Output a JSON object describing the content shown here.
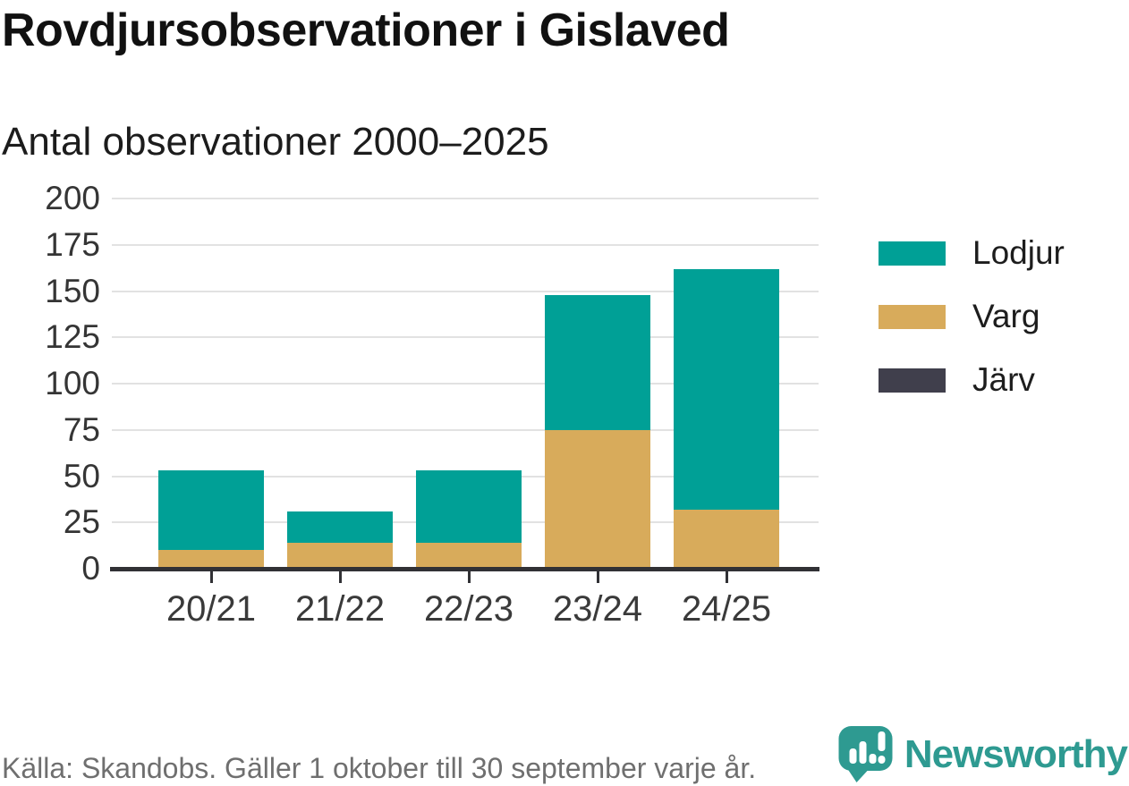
{
  "title": "Rovdjursobservationer i Gislaved",
  "subtitle": "Antal observationer 2000–2025",
  "chart_data": {
    "type": "bar",
    "stacked": true,
    "title": "Rovdjursobservationer i Gislaved",
    "subtitle": "Antal observationer 2000–2025",
    "categories": [
      "20/21",
      "21/22",
      "22/23",
      "23/24",
      "24/25"
    ],
    "series": [
      {
        "name": "Lodjur",
        "color": "#00A096",
        "values": [
          43,
          17,
          39,
          73,
          130
        ]
      },
      {
        "name": "Varg",
        "color": "#D8AB5B",
        "values": [
          10,
          14,
          14,
          75,
          32
        ]
      },
      {
        "name": "Järv",
        "color": "#403F4C",
        "values": [
          0,
          0,
          0,
          0,
          0
        ]
      }
    ],
    "stack_totals": [
      53,
      31,
      53,
      148,
      162
    ],
    "xlabel": "",
    "ylabel": "",
    "ylim": [
      0,
      200
    ],
    "yticks": [
      0,
      25,
      50,
      75,
      100,
      125,
      150,
      175,
      200
    ],
    "grid": "horizontal",
    "legend_position": "right"
  },
  "legend": {
    "items": [
      {
        "label": "Lodjur",
        "color": "#00A096"
      },
      {
        "label": "Varg",
        "color": "#D8AB5B"
      },
      {
        "label": "Järv",
        "color": "#403F4C"
      }
    ]
  },
  "footer": {
    "source": "Källa: Skandobs. Gäller 1 oktober till 30 september varje år.",
    "brand": "Newsworthy"
  },
  "colors": {
    "lodjur": "#00A096",
    "varg": "#D8AB5B",
    "jarv": "#403F4C",
    "gridline": "#E2E2E2",
    "axis": "#313135",
    "tick_label": "#3A3A3A",
    "source_text": "#6F6F6F",
    "brand_teal": "#2E9A91"
  }
}
